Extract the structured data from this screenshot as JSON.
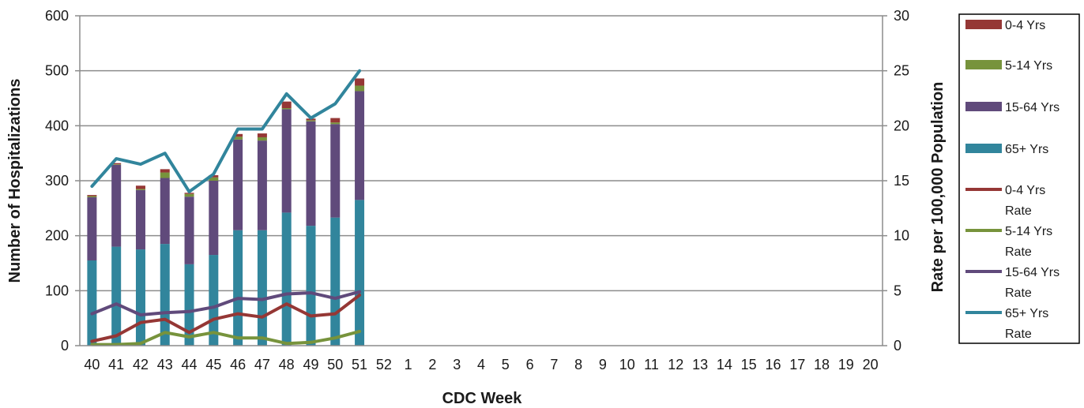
{
  "chart_data": {
    "type": "bar",
    "combo": "stacked-bar + line (secondary axis)",
    "categories": [
      "40",
      "41",
      "42",
      "43",
      "44",
      "45",
      "46",
      "47",
      "48",
      "49",
      "50",
      "51",
      "52",
      "1",
      "2",
      "3",
      "4",
      "5",
      "6",
      "7",
      "8",
      "9",
      "10",
      "11",
      "12",
      "13",
      "14",
      "15",
      "16",
      "17",
      "18",
      "19",
      "20"
    ],
    "xlabel": "CDC Week",
    "ylabel": "Number of Hospitalizations",
    "y2label": "Rate per 100,000 Population",
    "ylim": [
      0,
      600
    ],
    "y2lim": [
      0,
      30
    ],
    "yticks": [
      "0",
      "100",
      "200",
      "300",
      "400",
      "500",
      "600"
    ],
    "y2ticks": [
      "0",
      "5",
      "10",
      "15",
      "20",
      "25",
      "30"
    ],
    "grid": "horizontal",
    "legend_position": "right",
    "bar_series": [
      {
        "name": "0-4 Yrs",
        "color": "#953735",
        "values": [
          2,
          2,
          6,
          6,
          2,
          4,
          5,
          7,
          12,
          3,
          8,
          13,
          null,
          null,
          null,
          null,
          null,
          null,
          null,
          null,
          null,
          null,
          null,
          null,
          null,
          null,
          null,
          null,
          null,
          null,
          null,
          null,
          null
        ]
      },
      {
        "name": "5-14 Yrs",
        "color": "#77933c",
        "values": [
          2,
          1,
          2,
          10,
          5,
          6,
          5,
          6,
          2,
          2,
          3,
          10,
          null,
          null,
          null,
          null,
          null,
          null,
          null,
          null,
          null,
          null,
          null,
          null,
          null,
          null,
          null,
          null,
          null,
          null,
          null,
          null,
          null
        ]
      },
      {
        "name": "15-64 Yrs",
        "color": "#604a7b",
        "values": [
          115,
          149,
          108,
          120,
          123,
          135,
          165,
          163,
          188,
          190,
          170,
          198,
          null,
          null,
          null,
          null,
          null,
          null,
          null,
          null,
          null,
          null,
          null,
          null,
          null,
          null,
          null,
          null,
          null,
          null,
          null,
          null,
          null
        ]
      },
      {
        "name": "65+ Yrs",
        "color": "#31859c",
        "values": [
          155,
          180,
          175,
          185,
          148,
          165,
          210,
          210,
          242,
          218,
          233,
          265,
          null,
          null,
          null,
          null,
          null,
          null,
          null,
          null,
          null,
          null,
          null,
          null,
          null,
          null,
          null,
          null,
          null,
          null,
          null,
          null,
          null
        ]
      }
    ],
    "line_series": [
      {
        "name": "0-4 Yrs Rate",
        "color": "#953735",
        "values": [
          0.4,
          0.9,
          2.1,
          2.4,
          1.2,
          2.4,
          2.9,
          2.6,
          3.8,
          2.7,
          2.9,
          4.6,
          null,
          null,
          null,
          null,
          null,
          null,
          null,
          null,
          null,
          null,
          null,
          null,
          null,
          null,
          null,
          null,
          null,
          null,
          null,
          null,
          null
        ]
      },
      {
        "name": "5-14 Yrs Rate",
        "color": "#77933c",
        "values": [
          0.1,
          0.1,
          0.2,
          1.2,
          0.8,
          1.2,
          0.7,
          0.7,
          0.2,
          0.3,
          0.7,
          1.3,
          null,
          null,
          null,
          null,
          null,
          null,
          null,
          null,
          null,
          null,
          null,
          null,
          null,
          null,
          null,
          null,
          null,
          null,
          null,
          null,
          null
        ]
      },
      {
        "name": "15-64 Yrs Rate",
        "color": "#604a7b",
        "values": [
          2.9,
          3.8,
          2.8,
          3.0,
          3.1,
          3.5,
          4.3,
          4.2,
          4.7,
          4.8,
          4.3,
          4.9,
          null,
          null,
          null,
          null,
          null,
          null,
          null,
          null,
          null,
          null,
          null,
          null,
          null,
          null,
          null,
          null,
          null,
          null,
          null,
          null,
          null
        ]
      },
      {
        "name": "65+ Yrs Rate",
        "color": "#31859c",
        "values": [
          14.5,
          17.0,
          16.5,
          17.5,
          14.0,
          15.6,
          19.7,
          19.7,
          22.9,
          20.7,
          22.0,
          25.0,
          null,
          null,
          null,
          null,
          null,
          null,
          null,
          null,
          null,
          null,
          null,
          null,
          null,
          null,
          null,
          null,
          null,
          null,
          null,
          null,
          null
        ]
      }
    ],
    "legend": [
      {
        "label_lines": [
          "0-4 Yrs"
        ],
        "kind": "bar",
        "color": "#953735"
      },
      {
        "label_lines": [
          "5-14 Yrs"
        ],
        "kind": "bar",
        "color": "#77933c"
      },
      {
        "label_lines": [
          "15-64 Yrs"
        ],
        "kind": "bar",
        "color": "#604a7b"
      },
      {
        "label_lines": [
          "65+ Yrs"
        ],
        "kind": "bar",
        "color": "#31859c"
      },
      {
        "label_lines": [
          "0-4 Yrs",
          "Rate"
        ],
        "kind": "line",
        "color": "#953735"
      },
      {
        "label_lines": [
          "5-14 Yrs",
          "Rate"
        ],
        "kind": "line",
        "color": "#77933c"
      },
      {
        "label_lines": [
          "15-64 Yrs",
          "Rate"
        ],
        "kind": "line",
        "color": "#604a7b"
      },
      {
        "label_lines": [
          "65+ Yrs",
          "Rate"
        ],
        "kind": "line",
        "color": "#31859c"
      }
    ]
  }
}
